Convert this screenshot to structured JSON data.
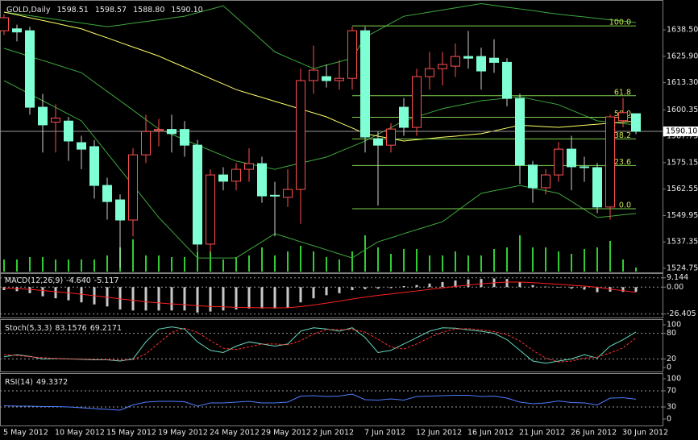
{
  "chart_data": [
    {
      "type": "candlestick",
      "title": "GOLD,Daily",
      "header_values": [
        1598.51,
        1598.57,
        1588.8,
        1590.1
      ],
      "header_value_labels": [
        "1598.51",
        "1598.57",
        "1588.80",
        "1590.10"
      ],
      "categories": [
        "5 May 2012",
        null,
        null,
        null,
        "10 May 2012",
        null,
        null,
        null,
        "15 May 2012",
        null,
        null,
        null,
        "19 May 2012",
        null,
        null,
        null,
        "24 May 2012",
        null,
        null,
        null,
        "29 May 2012",
        null,
        null,
        null,
        "2 Jun 2012",
        null,
        null,
        null,
        "7 Jun 2012",
        null,
        null,
        null,
        "12 Jun 2012",
        null,
        null,
        null,
        "16 Jun 2012",
        null,
        null,
        null,
        "21 Jun 2012",
        null,
        null,
        null,
        "26 Jun 2012",
        null,
        null,
        null,
        "30 Jun 2012",
        null
      ],
      "open": [
        1638.1,
        1639,
        1638.1,
        1601.6,
        1594.5,
        1595,
        1584.7,
        1582.8,
        1564.3,
        1557.4,
        1547.8,
        1578.9,
        1590.5,
        1591,
        1591,
        1583.5,
        1536.3,
        1569.3,
        1566.3,
        1572,
        1574.7,
        1559.6,
        1558.6,
        1562.4,
        1614.3,
        1616.2,
        1614.3,
        1615.4,
        1638.1,
        1586.6,
        1583.5,
        1601.6,
        1592,
        1616.2,
        1620,
        1621.2,
        1625.8,
        1625.8,
        1625,
        1623,
        1605.8,
        1574,
        1563.2,
        1569.3,
        1581.6,
        1573.2,
        1572.8,
        1554,
        1595.2,
        1598.51
      ],
      "high": [
        1646,
        1641,
        1640,
        1608,
        1603,
        1597,
        1588,
        1586,
        1568,
        1560,
        1582,
        1598,
        1596,
        1598,
        1595,
        1586,
        1572,
        1573,
        1575,
        1582,
        1578,
        1566,
        1572,
        1620,
        1631,
        1622,
        1624,
        1640,
        1640,
        1590,
        1594,
        1606,
        1620,
        1628,
        1628,
        1632,
        1638,
        1630,
        1634,
        1625,
        1608,
        1576,
        1572,
        1585,
        1588,
        1578,
        1575,
        1598,
        1606,
        1598.57
      ],
      "low": [
        1636,
        1633,
        1598,
        1580,
        1580,
        1576,
        1572,
        1558,
        1548,
        1525,
        1540,
        1575,
        1583,
        1580,
        1578,
        1533,
        1532,
        1562,
        1562,
        1566,
        1556,
        1540,
        1554,
        1546,
        1608,
        1611,
        1610,
        1610,
        1580,
        1554.7,
        1580,
        1588,
        1588,
        1610,
        1612,
        1616,
        1620,
        1610,
        1618,
        1602,
        1565,
        1556,
        1560,
        1566,
        1562,
        1566,
        1551,
        1548,
        1592,
        1588.8
      ],
      "close": [
        1644.3,
        1637.5,
        1601.6,
        1593.2,
        1596.4,
        1585.5,
        1581.6,
        1564.3,
        1556.6,
        1547.8,
        1578.9,
        1590,
        1591,
        1589,
        1583.5,
        1536.3,
        1569.3,
        1566.3,
        1572,
        1574.7,
        1559.3,
        1559.3,
        1562.4,
        1614.3,
        1619.3,
        1614.3,
        1615.4,
        1638.1,
        1587.4,
        1583.5,
        1591.2,
        1592,
        1616.2,
        1620,
        1622,
        1625.8,
        1625,
        1618.9,
        1623,
        1605.8,
        1574,
        1563.2,
        1569.3,
        1581.6,
        1573.2,
        1572.8,
        1554,
        1597,
        1599,
        1590.1
      ],
      "volume": [
        15,
        15,
        18,
        18,
        15,
        15,
        15,
        15,
        20,
        30,
        40,
        20,
        20,
        18,
        18,
        25,
        25,
        15,
        18,
        20,
        30,
        20,
        25,
        32,
        25,
        18,
        15,
        25,
        45,
        30,
        22,
        28,
        28,
        20,
        20,
        25,
        20,
        20,
        28,
        30,
        45,
        30,
        30,
        25,
        22,
        28,
        30,
        38,
        15,
        5
      ],
      "bull_color": "#ff5050",
      "bear_color": "#7fffd4",
      "volume_color": "#32cd32",
      "series": [
        {
          "color": "#3ea83e",
          "values": [
            1647,
            1646.1,
            1645.3,
            1644.4,
            1643.5,
            1642.6,
            1641.8,
            1640.9,
            1640,
            1640.8,
            1641.7,
            1642.5,
            1643.3,
            1644.2,
            1645,
            1646.7,
            1648.3,
            1650,
            1644.5,
            1639,
            1633.5,
            1628,
            1625.3,
            1622.7,
            1620,
            1621.7,
            1623.3,
            1625,
            1635,
            1638.3,
            1641.7,
            1645,
            1646,
            1647,
            1648,
            1649,
            1650,
            1651,
            1650.2,
            1649.3,
            1648.5,
            1647.7,
            1646.8,
            1646,
            1645.3,
            1644.7,
            1644,
            1643.3,
            1642.7,
            1642
          ]
        },
        {
          "color": "#3ea83e",
          "values": [
            1629.7,
            1627.8,
            1625.8,
            1623.9,
            1622,
            1620,
            1618.1,
            1613.6,
            1609.1,
            1604.7,
            1600.2,
            1595.7,
            1591.2,
            1588.7,
            1586.1,
            1583.6,
            1581,
            1578.5,
            1575.9,
            1574.6,
            1573.3,
            1572,
            1573.5,
            1574.9,
            1576.4,
            1577.8,
            1580.4,
            1582.9,
            1585.5,
            1588.7,
            1591.9,
            1595.1,
            1597,
            1599,
            1600.9,
            1602.2,
            1603.4,
            1604.7,
            1605.3,
            1606,
            1606.6,
            1605.3,
            1604.1,
            1602.8,
            1600.2,
            1597.7,
            1595.1,
            1594.5,
            1593.8,
            1593.2
          ]
        },
        {
          "color": "#3ea83e",
          "values": [
            1614.3,
            1611.1,
            1607.9,
            1604.7,
            1601.5,
            1598.3,
            1595.1,
            1587.4,
            1579.7,
            1572,
            1564.4,
            1556.7,
            1549,
            1542.6,
            1536.1,
            1529.7,
            1529.7,
            1529.7,
            1529.7,
            1533.6,
            1537.4,
            1541.3,
            1539.4,
            1537.4,
            1535.5,
            1533.6,
            1531.6,
            1529.7,
            1533.6,
            1537.4,
            1539.3,
            1541.3,
            1543.2,
            1545.1,
            1547,
            1551.5,
            1556,
            1560.5,
            1561.8,
            1563,
            1564.3,
            1563,
            1561.8,
            1560.5,
            1556.7,
            1552.8,
            1549,
            1549.6,
            1550.3,
            1550.9
          ]
        },
        {
          "color": "#ffff66",
          "values": [
            1647,
            1645.7,
            1644.3,
            1643,
            1641.7,
            1640.3,
            1639,
            1636.8,
            1634.7,
            1632.5,
            1630.3,
            1628.2,
            1626,
            1623.3,
            1620.7,
            1618,
            1615.3,
            1612.7,
            1610,
            1608.1,
            1606.3,
            1604.4,
            1602.6,
            1600.7,
            1598.9,
            1597,
            1594.3,
            1591.7,
            1589,
            1587.8,
            1586.7,
            1585.5,
            1586.1,
            1586.7,
            1587.3,
            1587.8,
            1588.4,
            1589,
            1590.3,
            1591.7,
            1593,
            1592.7,
            1592.3,
            1592,
            1592.5,
            1593,
            1593.5,
            1594,
            1594.5,
            1595
          ]
        }
      ],
      "fib": {
        "color": "#7cd24c",
        "label_color": "#c8e650",
        "start_index": 27,
        "levels": [
          {
            "label": "100.0",
            "price": 1640.4
          },
          {
            "label": "61.8",
            "price": 1607.1
          },
          {
            "label": "50.0",
            "price": 1596.8
          },
          {
            "label": "38.2",
            "price": 1586.5
          },
          {
            "label": "23.6",
            "price": 1573.8
          },
          {
            "label": "0.0",
            "price": 1553.2
          }
        ]
      },
      "current_price": {
        "value": 1590.1,
        "label": "1590.10"
      },
      "ylim": [
        1523.2,
        1651.6
      ],
      "yticks": [
        {
          "value": 1638.5,
          "label": "1638.50"
        },
        {
          "value": 1625.9,
          "label": "1625.90"
        },
        {
          "value": 1613.3,
          "label": "1613.30"
        },
        {
          "value": 1600.35,
          "label": "1600.35"
        },
        {
          "value": 1587.75,
          "label": "1587.75"
        },
        {
          "value": 1575.15,
          "label": "1575.15"
        },
        {
          "value": 1562.55,
          "label": "1562.55"
        },
        {
          "value": 1549.95,
          "label": "1549.95"
        },
        {
          "value": 1537.35,
          "label": "1537.35"
        },
        {
          "value": 1524.75,
          "label": "1524.75"
        }
      ]
    },
    {
      "type": "bar",
      "title": "MACD(12,26,9)",
      "series": [
        {
          "style": "bar",
          "color": "#c8c8c8",
          "last_label": "-4.640",
          "values": [
            -3,
            -4,
            -6,
            -9,
            -11,
            -13,
            -15,
            -17,
            -19,
            -22,
            -23,
            -23,
            -23,
            -23,
            -23,
            -25,
            -24,
            -23,
            -22,
            -21,
            -21,
            -21,
            -20,
            -15,
            -11,
            -8,
            -6,
            -3,
            -2,
            -1.5,
            -1,
            1,
            2,
            3.5,
            5,
            6.5,
            7.5,
            8,
            8.5,
            8,
            5,
            2,
            0.5,
            -0.5,
            -1.5,
            -2.5,
            -5,
            -4.5,
            -4.7,
            -4.64
          ]
        },
        {
          "style": "line",
          "color": "#ff2020",
          "values": [
            -1,
            -1.5,
            -2.2,
            -3.4,
            -4.5,
            -5.6,
            -7,
            -8.5,
            -10,
            -11.6,
            -13,
            -14.4,
            -15.5,
            -16.5,
            -17.3,
            -18.3,
            -19,
            -19.4,
            -19.9,
            -20.1,
            -20.3,
            -20.4,
            -20.3,
            -19.2,
            -17.6,
            -15.7,
            -13.8,
            -11.7,
            -9.8,
            -8.1,
            -6.7,
            -5.2,
            -3.8,
            -2.3,
            -0.8,
            0.7,
            2,
            3.2,
            4.3,
            5,
            5,
            4.4,
            3.6,
            2.8,
            1.9,
            1,
            -0.2,
            -2,
            -3.5,
            -5.117
          ]
        }
      ],
      "ylim": [
        -27.5,
        10.5
      ],
      "yticks": [
        9.144,
        {
          "value": 0,
          "label": "0.00"
        },
        -26.405
      ]
    },
    {
      "type": "line",
      "title": "Stoch(5,3,3)",
      "series": [
        {
          "style": "line",
          "color": "#66d9c0",
          "values": [
            25,
            30,
            26,
            20,
            21,
            20,
            19,
            18,
            18,
            15,
            20,
            60,
            90,
            95,
            90,
            60,
            40,
            35,
            50,
            60,
            55,
            50,
            55,
            85,
            93,
            90,
            85,
            93,
            70,
            35,
            40,
            55,
            70,
            85,
            93,
            92,
            88,
            85,
            80,
            65,
            40,
            15,
            10,
            15,
            20,
            30,
            22,
            50,
            65,
            83.1576
          ]
        },
        {
          "style": "dashed",
          "color": "#ff3030",
          "values": [
            30,
            28,
            25,
            23,
            21,
            20,
            20,
            19,
            18,
            17,
            18,
            32,
            57,
            82,
            92,
            82,
            63,
            45,
            42,
            48,
            55,
            55,
            53,
            63,
            78,
            89,
            89,
            89,
            83,
            66,
            48,
            43,
            55,
            70,
            83,
            90,
            91,
            88,
            84,
            77,
            62,
            40,
            22,
            13,
            15,
            22,
            24,
            34,
            46,
            69.2171
          ]
        }
      ],
      "ylim": [
        0,
        100
      ],
      "yticks": [
        100,
        80,
        20,
        0
      ]
    },
    {
      "type": "line",
      "title": "RSI(14)",
      "series": [
        {
          "style": "line",
          "color": "#4f7cff",
          "values": [
            33,
            32,
            32,
            31,
            31,
            30,
            28,
            26,
            24,
            22,
            35,
            42,
            44,
            44,
            43,
            32,
            40,
            40,
            42,
            44,
            40,
            40,
            42,
            57,
            58,
            56,
            57,
            62,
            48,
            47,
            50,
            47,
            56,
            57,
            58,
            59,
            59,
            56,
            57,
            52,
            42,
            38,
            40,
            45,
            41,
            40,
            35,
            52,
            53,
            49.3372
          ]
        }
      ],
      "ylim": [
        0,
        100
      ],
      "yticks": [
        100,
        70,
        30,
        0
      ]
    }
  ]
}
